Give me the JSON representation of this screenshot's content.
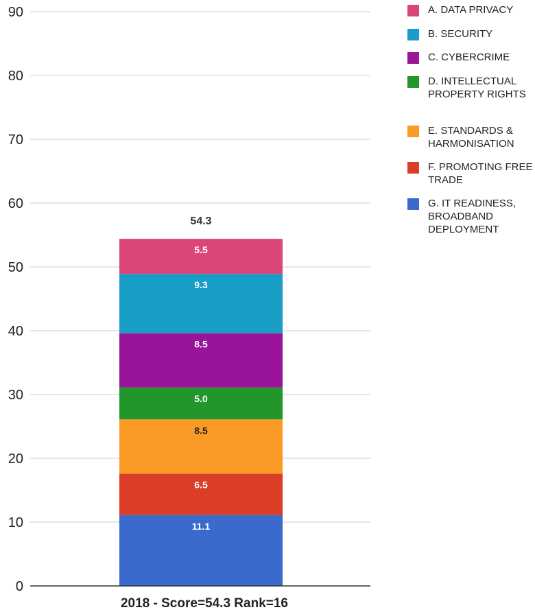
{
  "chart_data": {
    "type": "bar",
    "stacked": true,
    "categories": [
      "2018 - Score=54.3 Rank=16"
    ],
    "total_label": "54.3",
    "ylim": [
      0,
      90
    ],
    "yticks": [
      0,
      10,
      20,
      30,
      40,
      50,
      60,
      70,
      80,
      90
    ],
    "grid": true,
    "legend_position": "right",
    "series": [
      {
        "name": "G. IT READINESS, BROADBAND DEPLOYMENT",
        "values": [
          11.1
        ],
        "label": "11.1",
        "color": "#3a6bcc",
        "label_color": "#ffffff"
      },
      {
        "name": "F. PROMOTING FREE TRADE",
        "values": [
          6.5
        ],
        "label": "6.5",
        "color": "#db3e26",
        "label_color": "#ffffff"
      },
      {
        "name": "E. STANDARDS & HARMONISATION",
        "values": [
          8.5
        ],
        "label": "8.5",
        "color": "#fc9a26",
        "label_color": "#222222"
      },
      {
        "name": "D. INTELLECTUAL PROPERTY RIGHTS",
        "values": [
          5.0
        ],
        "label": "5.0",
        "color": "#22962b",
        "label_color": "#ffffff"
      },
      {
        "name": "C. CYBERCRIME",
        "values": [
          8.5
        ],
        "label": "8.5",
        "color": "#991498",
        "label_color": "#ffffff"
      },
      {
        "name": "B. SECURITY",
        "values": [
          9.3
        ],
        "label": "9.3",
        "color": "#189dc7",
        "label_color": "#ffffff"
      },
      {
        "name": "A. DATA PRIVACY",
        "values": [
          5.5
        ],
        "label": "5.5",
        "color": "#dc4778",
        "label_color": "#ffffff"
      }
    ],
    "legend": [
      {
        "label": "A. DATA PRIVACY",
        "color": "#dc4778"
      },
      {
        "label": "B. SECURITY",
        "color": "#189dc7"
      },
      {
        "label": "C. CYBERCRIME",
        "color": "#991498"
      },
      {
        "label": "D. INTELLECTUAL PROPERTY RIGHTS",
        "color": "#22962b"
      },
      {
        "label": "E. STANDARDS & HARMONISATION",
        "color": "#fc9a26"
      },
      {
        "label": "F. PROMOTING FREE TRADE",
        "color": "#db3e26"
      },
      {
        "label": "G. IT READINESS, BROADBAND DEPLOYMENT",
        "color": "#3a6bcc"
      }
    ]
  }
}
